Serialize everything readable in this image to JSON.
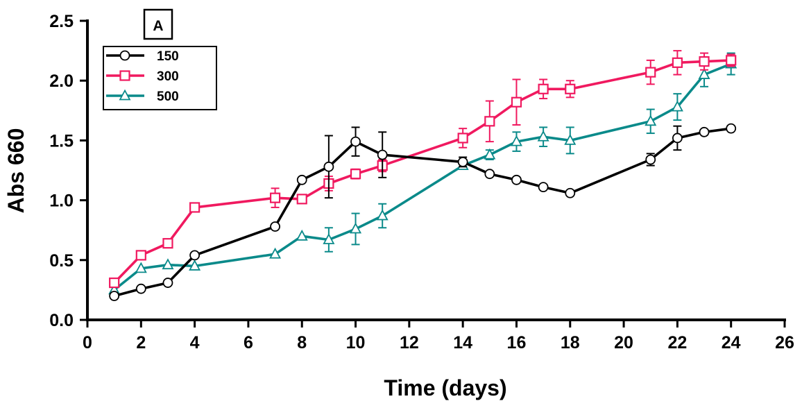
{
  "chart_data": {
    "type": "line",
    "panel_label": "A",
    "title": "",
    "xlabel": "Time (days)",
    "ylabel": "Abs 660",
    "xlim": [
      0,
      26
    ],
    "ylim": [
      0,
      2.5
    ],
    "xticks": [
      0,
      2,
      4,
      6,
      8,
      10,
      12,
      14,
      16,
      18,
      20,
      22,
      24,
      26
    ],
    "yticks": [
      "0.0",
      "0.5",
      "1.0",
      "1.5",
      "2.0",
      "2.5"
    ],
    "grid": false,
    "legend_position": "top-left",
    "series": [
      {
        "name": "150",
        "color": "#000000",
        "marker": "circle",
        "points": [
          {
            "x": 1,
            "y": 0.2
          },
          {
            "x": 2,
            "y": 0.26
          },
          {
            "x": 3,
            "y": 0.31
          },
          {
            "x": 4,
            "y": 0.54
          },
          {
            "x": 7,
            "y": 0.78
          },
          {
            "x": 8,
            "y": 1.17
          },
          {
            "x": 9,
            "y": 1.28,
            "err": 0.26
          },
          {
            "x": 10,
            "y": 1.49,
            "err": 0.12
          },
          {
            "x": 11,
            "y": 1.38,
            "err": 0.19
          },
          {
            "x": 14,
            "y": 1.32,
            "err": 0.04
          },
          {
            "x": 15,
            "y": 1.22
          },
          {
            "x": 16,
            "y": 1.17
          },
          {
            "x": 17,
            "y": 1.11
          },
          {
            "x": 18,
            "y": 1.06
          },
          {
            "x": 21,
            "y": 1.34,
            "err": 0.05
          },
          {
            "x": 22,
            "y": 1.52,
            "err": 0.1
          },
          {
            "x": 23,
            "y": 1.57
          },
          {
            "x": 24,
            "y": 1.6
          }
        ]
      },
      {
        "name": "300",
        "color": "#f0195f",
        "marker": "square",
        "points": [
          {
            "x": 1,
            "y": 0.31
          },
          {
            "x": 2,
            "y": 0.54
          },
          {
            "x": 3,
            "y": 0.64
          },
          {
            "x": 4,
            "y": 0.94
          },
          {
            "x": 7,
            "y": 1.02,
            "err": 0.08
          },
          {
            "x": 8,
            "y": 1.01
          },
          {
            "x": 9,
            "y": 1.14,
            "err": 0.06
          },
          {
            "x": 10,
            "y": 1.22,
            "err": 0.04
          },
          {
            "x": 11,
            "y": 1.29,
            "err": 0.05
          },
          {
            "x": 14,
            "y": 1.52,
            "err": 0.08
          },
          {
            "x": 15,
            "y": 1.66,
            "err": 0.17
          },
          {
            "x": 16,
            "y": 1.82,
            "err": 0.19
          },
          {
            "x": 17,
            "y": 1.93,
            "err": 0.08
          },
          {
            "x": 18,
            "y": 1.93,
            "err": 0.07
          },
          {
            "x": 21,
            "y": 2.07,
            "err": 0.1
          },
          {
            "x": 22,
            "y": 2.15,
            "err": 0.1
          },
          {
            "x": 23,
            "y": 2.16,
            "err": 0.07
          },
          {
            "x": 24,
            "y": 2.17,
            "err": 0.05
          }
        ]
      },
      {
        "name": "500",
        "color": "#0a8a8a",
        "marker": "triangle",
        "points": [
          {
            "x": 1,
            "y": 0.25
          },
          {
            "x": 2,
            "y": 0.43
          },
          {
            "x": 3,
            "y": 0.46
          },
          {
            "x": 4,
            "y": 0.45
          },
          {
            "x": 7,
            "y": 0.55
          },
          {
            "x": 8,
            "y": 0.7
          },
          {
            "x": 9,
            "y": 0.67,
            "err": 0.1
          },
          {
            "x": 10,
            "y": 0.76,
            "err": 0.13
          },
          {
            "x": 11,
            "y": 0.87,
            "err": 0.1
          },
          {
            "x": 14,
            "y": 1.29
          },
          {
            "x": 15,
            "y": 1.38,
            "err": 0.04
          },
          {
            "x": 16,
            "y": 1.49,
            "err": 0.08
          },
          {
            "x": 17,
            "y": 1.53,
            "err": 0.08
          },
          {
            "x": 18,
            "y": 1.5,
            "err": 0.11
          },
          {
            "x": 21,
            "y": 1.66,
            "err": 0.1
          },
          {
            "x": 22,
            "y": 1.78,
            "err": 0.11
          },
          {
            "x": 23,
            "y": 2.05,
            "err": 0.1
          },
          {
            "x": 24,
            "y": 2.14,
            "err": 0.09
          }
        ]
      }
    ]
  }
}
